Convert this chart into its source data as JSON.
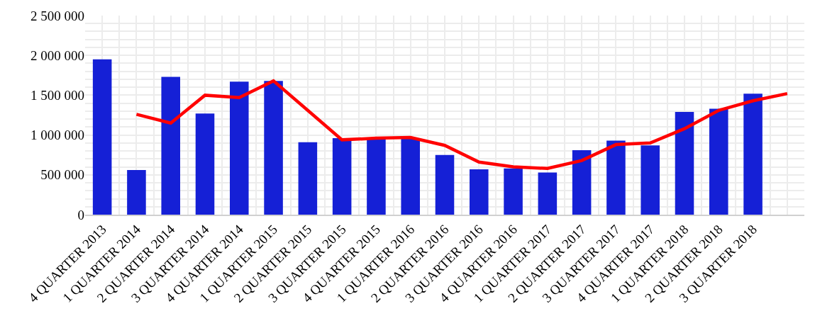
{
  "chart_data": {
    "type": "bar",
    "categories": [
      "4 QUARTER 2013",
      "1 QUARTER 2014",
      "2 QUARTER 2014",
      "3 QUARTER 2014",
      "4 QUARTER 2014",
      "1 QUARTER 2015",
      "2 QUARTER 2015",
      "3 QUARTER 2015",
      "4 QUARTER 2015",
      "1 QUARTER 2016",
      "2 QUARTER 2016",
      "3 QUARTER 2016",
      "4 QUARTER 2016",
      "1 QUARTER 2017",
      "2 QUARTER 2017",
      "3 QUARTER 2017",
      "4 QUARTER 2017",
      "1 QUARTER 2018",
      "2 QUARTER 2018",
      "3 QUARTER 2018",
      null
    ],
    "series": [
      {
        "color": "#1520d6",
        "values": [
          1950000,
          560000,
          1730000,
          1270000,
          1670000,
          1680000,
          910000,
          960000,
          950000,
          960000,
          750000,
          570000,
          580000,
          530000,
          810000,
          930000,
          870000,
          1290000,
          1330000,
          1520000,
          null
        ]
      },
      {
        "type": "line",
        "color": "#ff0000",
        "values": [
          null,
          1260000,
          1150000,
          1500000,
          1470000,
          1680000,
          1310000,
          940000,
          960000,
          970000,
          870000,
          660000,
          600000,
          580000,
          680000,
          880000,
          900000,
          1080000,
          1310000,
          1430000,
          1520000
        ]
      }
    ],
    "ylim": [
      0,
      2500000
    ],
    "yticks": [
      {
        "value": 0,
        "label": "0"
      },
      {
        "value": 500000,
        "label": "500 000"
      },
      {
        "value": 1000000,
        "label": "1 000 000"
      },
      {
        "value": 1500000,
        "label": "1 500 000"
      },
      {
        "value": 2000000,
        "label": "2 000 000"
      },
      {
        "value": 2500000,
        "label": "2 500 000"
      }
    ],
    "grid": true,
    "marker": "none",
    "line_style": "solid"
  }
}
